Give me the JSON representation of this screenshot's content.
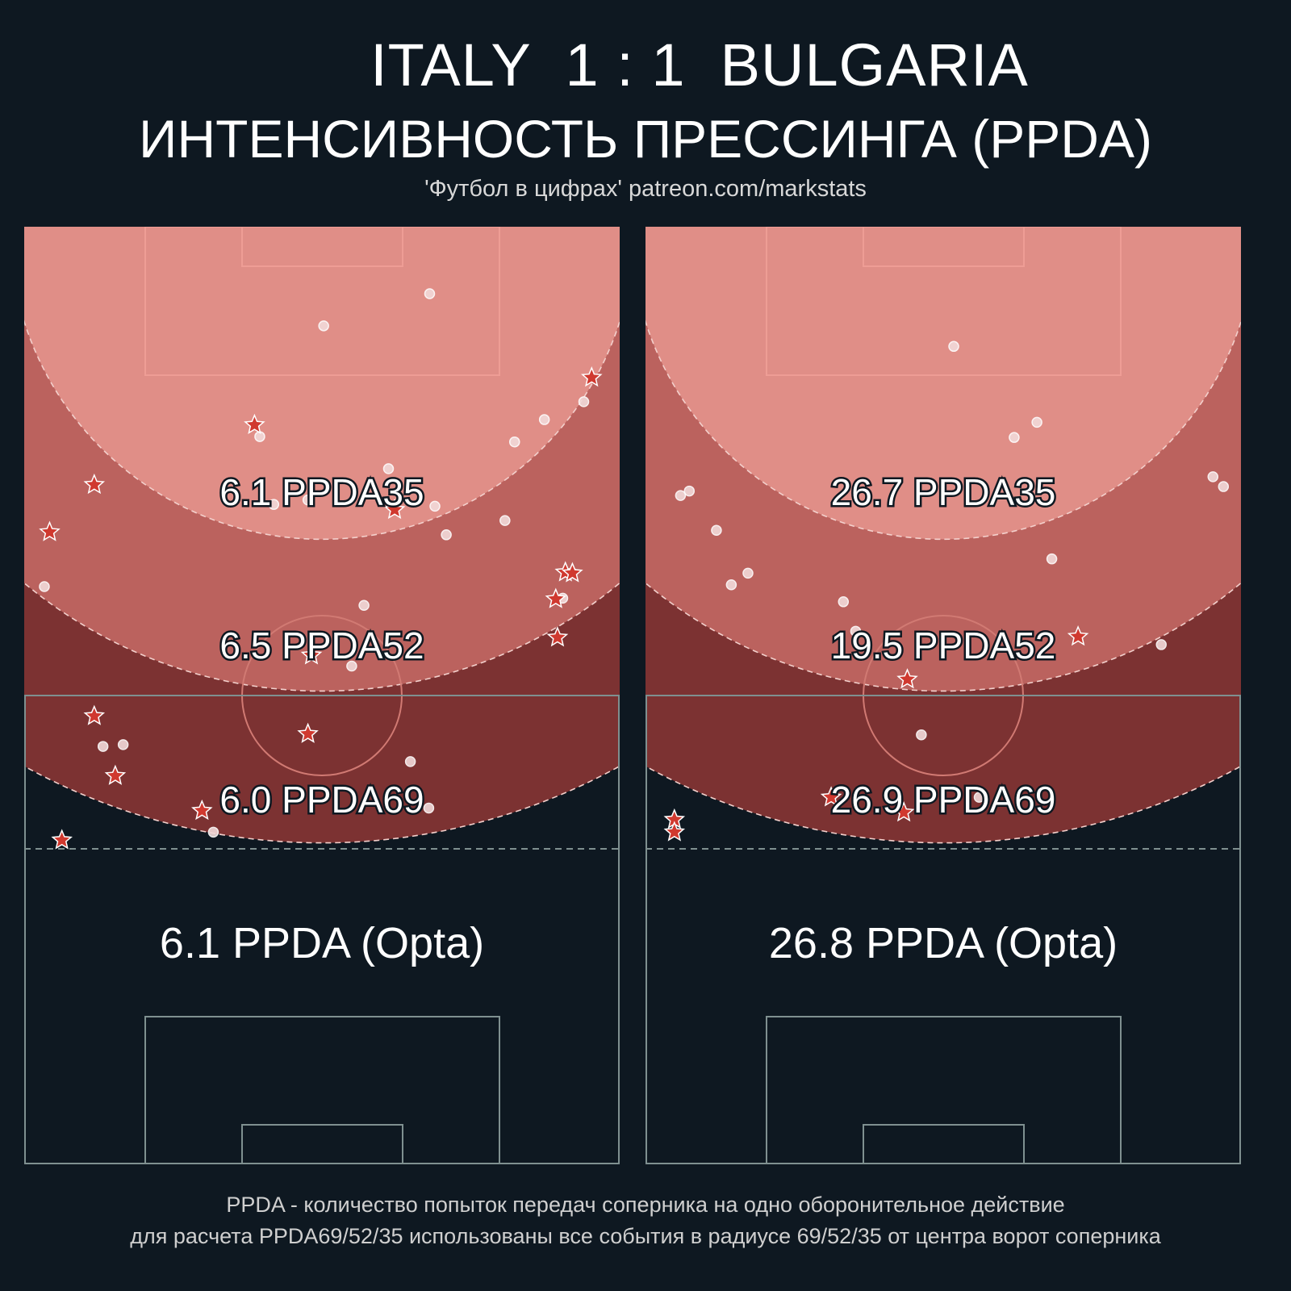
{
  "header": {
    "title": "ITALY  1 : 1  BULGARIA",
    "subtitle": "ИНТЕНСИВНОСТЬ ПРЕССИНГА (PPDA)",
    "source": "'Футбол в цифрах' patreon.com/markstats"
  },
  "footer": {
    "line1": "PPDA - количество попыток передач соперника на одно оборонительное действие",
    "line2": "для расчета PPDA69/52/35 использованы все события в радиусе 69/52/35 от центра ворот соперника"
  },
  "colors": {
    "background": "#0e1821",
    "zone35": "#e08e87",
    "zone52": "#bb625e",
    "zone69": "#7c3232",
    "star": "#d0392f",
    "dot": "#f2dada",
    "lines": "#7f9090"
  },
  "chart_data": [
    {
      "type": "scatter",
      "team": "left",
      "pitch_units": "meters (x across 0-68, y from opponent goal line 0-105)",
      "zones": [
        {
          "radius": 35,
          "label": "6.1 PPDA35"
        },
        {
          "radius": 52,
          "label": "6.5 PPDA52"
        },
        {
          "radius": 69,
          "label": "6.0 PPDA69"
        }
      ],
      "opta_label": "6.1 PPDA (Opta)",
      "series": [
        {
          "marker": "circle",
          "points": [
            [
              46.3,
              7.5
            ],
            [
              34.2,
              11.1
            ],
            [
              26.9,
              23.5
            ],
            [
              56.0,
              24.1
            ],
            [
              59.4,
              21.6
            ],
            [
              63.9,
              19.6
            ],
            [
              41.6,
              27.1
            ],
            [
              28.5,
              31.1
            ],
            [
              32.4,
              30.6
            ],
            [
              46.9,
              31.3
            ],
            [
              54.9,
              32.9
            ],
            [
              48.2,
              34.5
            ],
            [
              2.3,
              40.3
            ],
            [
              38.8,
              42.4
            ],
            [
              61.5,
              41.6
            ],
            [
              37.4,
              49.2
            ],
            [
              9.0,
              58.2
            ],
            [
              11.3,
              58.0
            ],
            [
              44.1,
              59.9
            ],
            [
              46.2,
              65.1
            ],
            [
              21.6,
              67.8
            ]
          ]
        },
        {
          "marker": "star",
          "points": [
            [
              64.8,
              16.9
            ],
            [
              26.3,
              22.2
            ],
            [
              8.0,
              28.9
            ],
            [
              2.9,
              34.2
            ],
            [
              42.3,
              31.7
            ],
            [
              61.8,
              38.7
            ],
            [
              62.6,
              38.8
            ],
            [
              60.7,
              41.7
            ],
            [
              60.9,
              46.0
            ],
            [
              32.8,
              48.0
            ],
            [
              8.0,
              54.8
            ],
            [
              32.4,
              56.8
            ],
            [
              10.4,
              61.5
            ],
            [
              20.3,
              65.4
            ],
            [
              4.3,
              68.7
            ]
          ]
        }
      ]
    },
    {
      "type": "scatter",
      "team": "right",
      "pitch_units": "meters (x across 0-68, y from opponent goal line 0-105)",
      "zones": [
        {
          "radius": 35,
          "label": "26.7 PPDA35"
        },
        {
          "radius": 52,
          "label": "19.5 PPDA52"
        },
        {
          "radius": 69,
          "label": "26.9 PPDA69"
        }
      ],
      "opta_label": "26.8 PPDA (Opta)",
      "series": [
        {
          "marker": "circle",
          "points": [
            [
              35.2,
              13.4
            ],
            [
              44.7,
              21.9
            ],
            [
              42.1,
              23.6
            ],
            [
              64.8,
              28.0
            ],
            [
              66.0,
              29.1
            ],
            [
              4.0,
              30.1
            ],
            [
              5.0,
              29.6
            ],
            [
              8.1,
              34.0
            ],
            [
              46.4,
              37.2
            ],
            [
              9.8,
              40.1
            ],
            [
              11.7,
              38.8
            ],
            [
              22.6,
              42.0
            ],
            [
              24.0,
              45.3
            ],
            [
              58.9,
              46.8
            ],
            [
              31.5,
              56.9
            ],
            [
              38.1,
              63.9
            ]
          ]
        },
        {
          "marker": "star",
          "points": [
            [
              49.4,
              45.9
            ],
            [
              29.9,
              50.7
            ],
            [
              21.2,
              63.9
            ],
            [
              29.5,
              65.6
            ],
            [
              3.3,
              66.4
            ],
            [
              3.3,
              67.8
            ]
          ]
        }
      ]
    }
  ]
}
